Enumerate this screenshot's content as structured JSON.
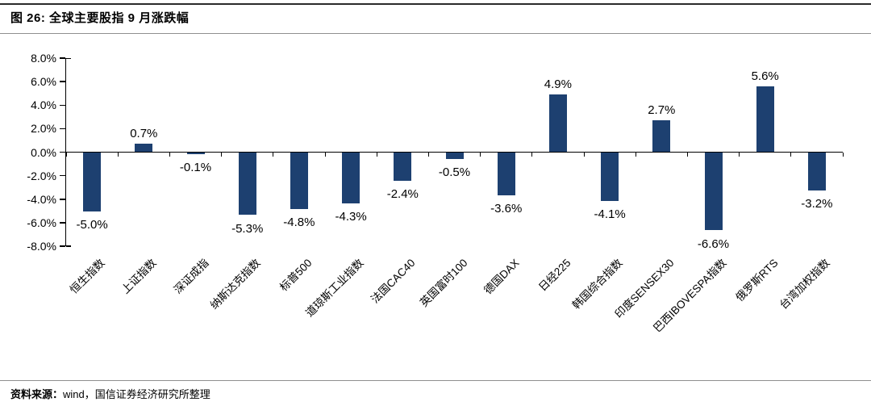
{
  "header": {
    "title": "图 26: 全球主要股指 9 月涨跌幅"
  },
  "footer": {
    "source_label": "资料来源：",
    "source_text": "wind，国信证券经济研究所整理"
  },
  "chart_data": {
    "type": "bar",
    "title": "全球主要股指9月涨跌幅",
    "xlabel": "",
    "ylabel": "",
    "categories": [
      "恒生指数",
      "上证指数",
      "深证成指",
      "纳斯达克指数",
      "标普500",
      "道琼斯工业指数",
      "法国CAC40",
      "英国富时100",
      "德国DAX",
      "日经225",
      "韩国综合指数",
      "印度SENSEX30",
      "巴西IBOVESPA指数",
      "俄罗斯RTS",
      "台湾加权指数"
    ],
    "values": [
      -5.0,
      0.7,
      -0.1,
      -5.3,
      -4.8,
      -4.3,
      -2.4,
      -0.5,
      -3.6,
      4.9,
      -4.1,
      2.7,
      -6.6,
      5.6,
      -3.2
    ],
    "value_labels": [
      "-5.0%",
      "0.7%",
      "-0.1%",
      "-5.3%",
      "-4.8%",
      "-4.3%",
      "-2.4%",
      "-0.5%",
      "-3.6%",
      "4.9%",
      "-4.1%",
      "2.7%",
      "-6.6%",
      "5.6%",
      "-3.2%"
    ],
    "ylim": [
      -8,
      8
    ],
    "yticks": [
      {
        "value": 8,
        "label": "8.0%"
      },
      {
        "value": 6,
        "label": "6.0%"
      },
      {
        "value": 4,
        "label": "4.0%"
      },
      {
        "value": 2,
        "label": "2.0%"
      },
      {
        "value": 0,
        "label": "0.0%"
      },
      {
        "value": -2,
        "label": "-2.0%"
      },
      {
        "value": -4,
        "label": "-4.0%"
      },
      {
        "value": -6,
        "label": "-6.0%"
      },
      {
        "value": -8,
        "label": "-8.0%"
      }
    ],
    "grid": false,
    "legend": "none",
    "bar_color": "#1D4070",
    "axis_color": "#000000"
  }
}
